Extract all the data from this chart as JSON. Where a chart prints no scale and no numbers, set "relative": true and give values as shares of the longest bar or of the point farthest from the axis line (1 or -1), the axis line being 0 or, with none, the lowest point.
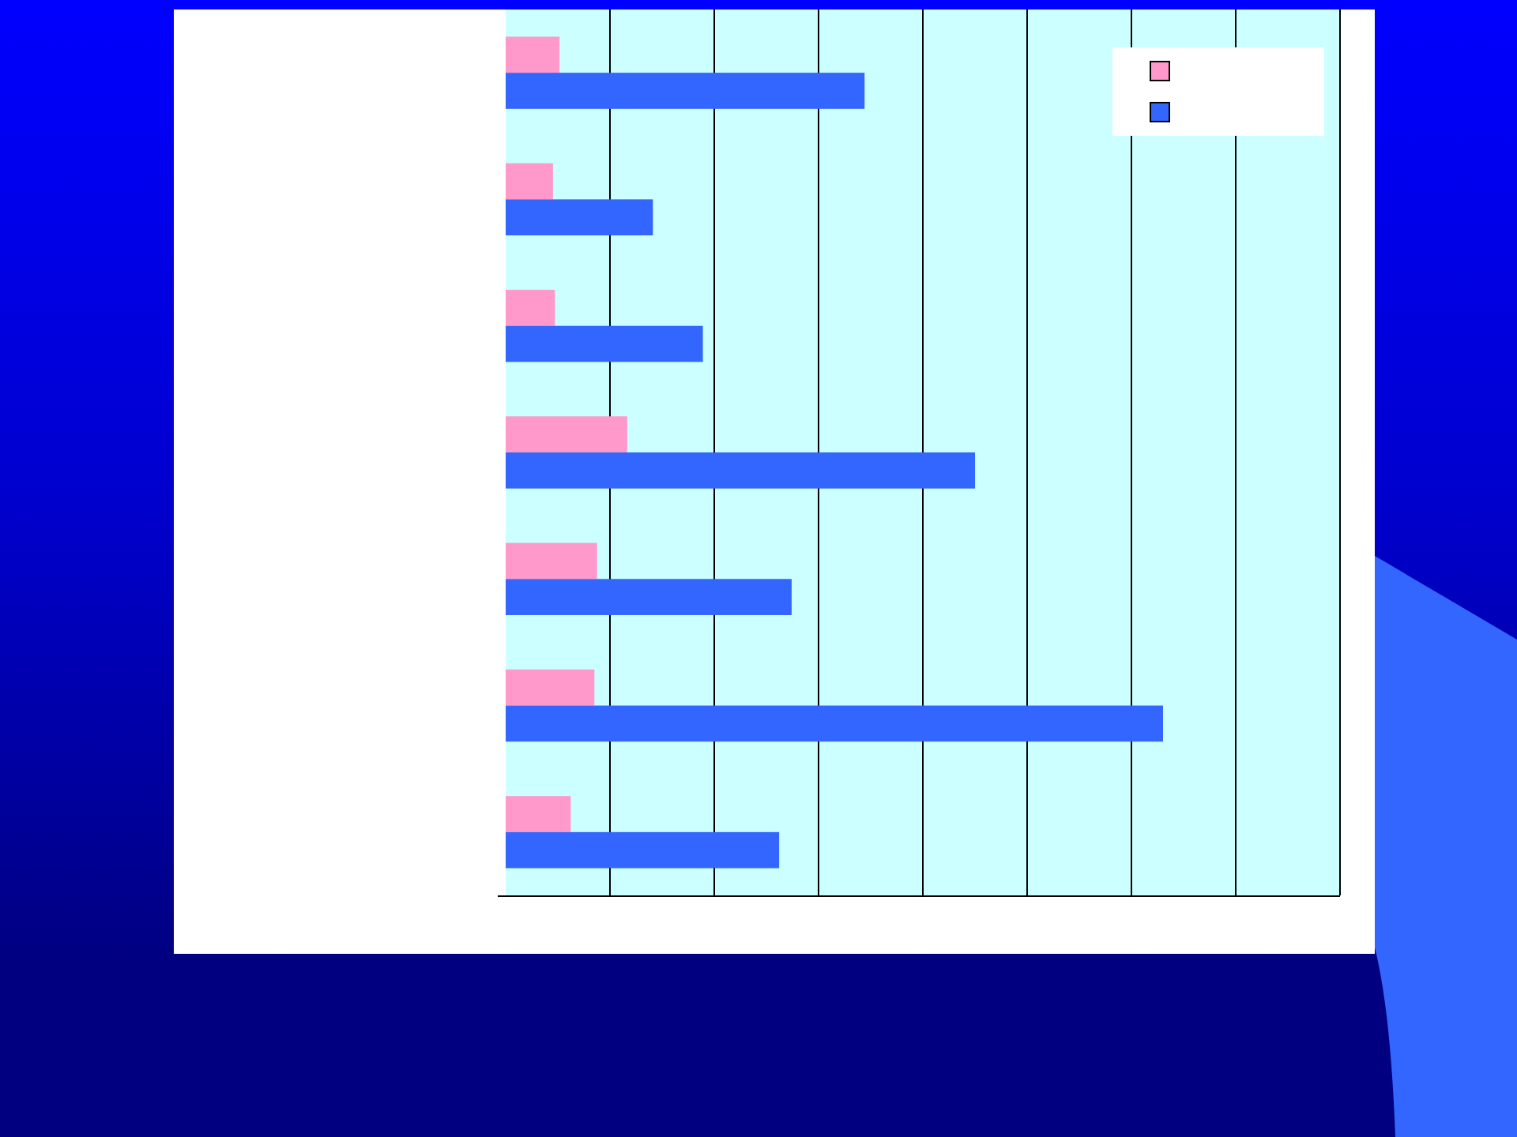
{
  "chart_data": {
    "type": "bar",
    "orientation": "horizontal",
    "relative": true,
    "categories": [
      null,
      null,
      null,
      null,
      null,
      null,
      null
    ],
    "series": [
      {
        "color": "#ff99cc",
        "values": [
          0.082,
          0.072,
          0.075,
          0.185,
          0.139,
          0.135,
          0.099
        ]
      },
      {
        "color": "#3366ff",
        "values": [
          0.546,
          0.224,
          0.3,
          0.714,
          0.435,
          1,
          0.416
        ]
      }
    ],
    "grid": "x"
  }
}
